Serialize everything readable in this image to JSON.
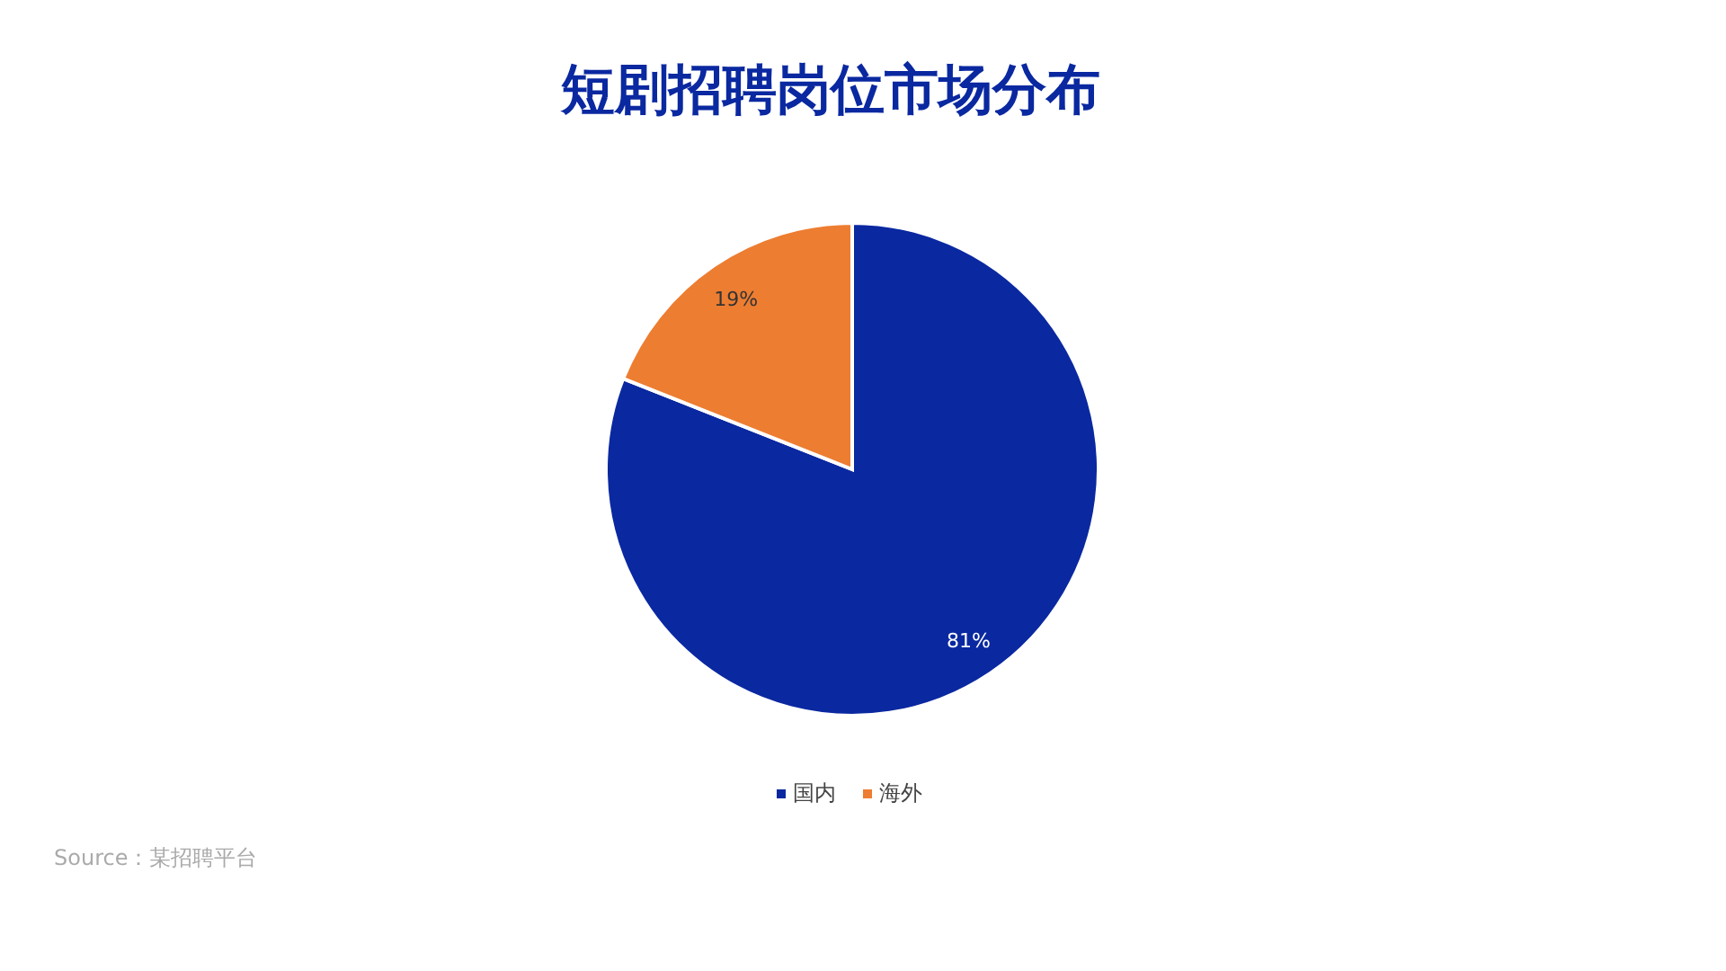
{
  "chart_data": {
    "type": "pie",
    "title": "短剧招聘岗位市场分布",
    "categories": [
      "国内",
      "海外"
    ],
    "values": [
      81,
      19
    ],
    "colors": [
      "#0a28a0",
      "#ed7d31"
    ],
    "value_labels": [
      "81%",
      "19%"
    ],
    "legend": "bottom",
    "annotations": [
      "Source：某招聘平台"
    ]
  }
}
